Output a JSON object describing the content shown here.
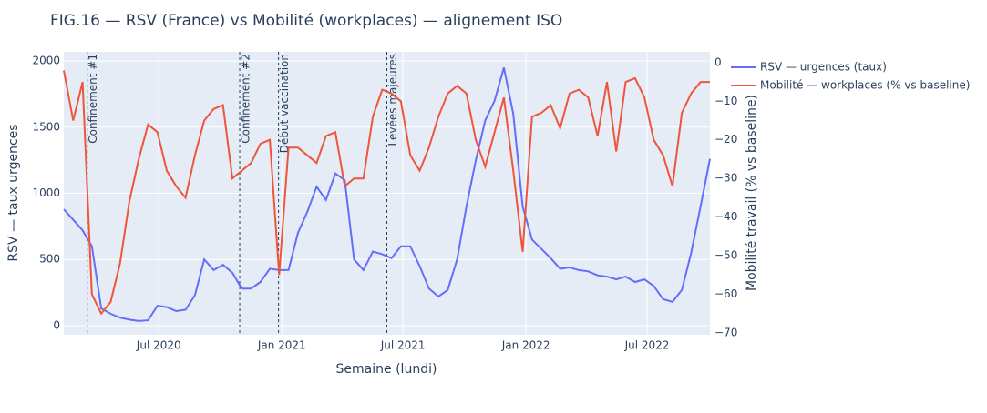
{
  "chart_data": {
    "type": "line",
    "title": "FIG.16 — RSV (France) vs Mobilité (workplaces) — alignement ISO",
    "x_label": "Semaine (lundi)",
    "y_label": "RSV — taux urgences",
    "y2_label": "Mobilité travail (% vs baseline)",
    "x": [
      "2020-02-10",
      "2020-02-24",
      "2020-03-09",
      "2020-03-23",
      "2020-04-06",
      "2020-04-20",
      "2020-05-04",
      "2020-05-18",
      "2020-06-01",
      "2020-06-15",
      "2020-06-29",
      "2020-07-13",
      "2020-07-27",
      "2020-08-10",
      "2020-08-24",
      "2020-09-07",
      "2020-09-21",
      "2020-10-05",
      "2020-10-19",
      "2020-11-02",
      "2020-11-16",
      "2020-11-30",
      "2020-12-14",
      "2020-12-28",
      "2021-01-11",
      "2021-01-25",
      "2021-02-08",
      "2021-02-22",
      "2021-03-08",
      "2021-03-22",
      "2021-04-05",
      "2021-04-19",
      "2021-05-03",
      "2021-05-17",
      "2021-05-31",
      "2021-06-14",
      "2021-06-28",
      "2021-07-12",
      "2021-07-26",
      "2021-08-09",
      "2021-08-23",
      "2021-09-06",
      "2021-09-20",
      "2021-10-04",
      "2021-10-18",
      "2021-11-01",
      "2021-11-15",
      "2021-11-29",
      "2021-12-13",
      "2021-12-27",
      "2022-01-10",
      "2022-01-24",
      "2022-02-07",
      "2022-02-21",
      "2022-03-07",
      "2022-03-21",
      "2022-04-04",
      "2022-04-18",
      "2022-05-02",
      "2022-05-16",
      "2022-05-30",
      "2022-06-13",
      "2022-06-27",
      "2022-07-11",
      "2022-07-25",
      "2022-08-08",
      "2022-08-22",
      "2022-09-05",
      "2022-09-19",
      "2022-10-03"
    ],
    "series": [
      {
        "name": "RSV — urgences (taux)",
        "color": "#636efa",
        "axis": "y",
        "values": [
          880,
          800,
          720,
          600,
          130,
          90,
          60,
          45,
          35,
          40,
          150,
          140,
          110,
          120,
          230,
          500,
          420,
          460,
          400,
          280,
          280,
          330,
          430,
          420,
          420,
          700,
          860,
          1050,
          950,
          1150,
          1100,
          500,
          420,
          560,
          540,
          510,
          600,
          600,
          450,
          280,
          220,
          270,
          500,
          900,
          1250,
          1550,
          1700,
          1950,
          1600,
          900,
          650,
          580,
          510,
          430,
          440,
          420,
          410,
          380,
          370,
          350,
          370,
          330,
          350,
          300,
          200,
          180,
          270,
          550,
          900,
          1260
        ]
      },
      {
        "name": "Mobilité — workplaces (% vs baseline)",
        "color": "#ef553b",
        "axis": "y2",
        "values": [
          -2,
          -15,
          -5,
          -60,
          -65,
          -62,
          -52,
          -36,
          -25,
          -16,
          -18,
          -28,
          -32,
          -35,
          -24,
          -15,
          -12,
          -11,
          -30,
          -28,
          -26,
          -21,
          -20,
          -55,
          -22,
          -22,
          -24,
          -26,
          -19,
          -18,
          -32,
          -30,
          -30,
          -14,
          -7,
          -8,
          -10,
          -24,
          -28,
          -22,
          -14,
          -8,
          -6,
          -8,
          -20,
          -27,
          -18,
          -9,
          -28,
          -49,
          -14,
          -13,
          -11,
          -17,
          -8,
          -7,
          -9,
          -19,
          -5,
          -23,
          -5,
          -4,
          -9,
          -20,
          -24,
          -32,
          -13,
          -8,
          -5,
          -5
        ]
      }
    ],
    "xlim": [
      "2020-02-10",
      "2022-10-03"
    ],
    "xticks": [
      {
        "value": "2020-07-01",
        "label": "Jul 2020"
      },
      {
        "value": "2021-01-01",
        "label": "Jan 2021"
      },
      {
        "value": "2021-07-01",
        "label": "Jul 2021"
      },
      {
        "value": "2022-01-01",
        "label": "Jan 2022"
      },
      {
        "value": "2022-07-01",
        "label": "Jul 2022"
      }
    ],
    "ylim": [
      -69,
      2069
    ],
    "yticks": [
      0,
      500,
      1000,
      1500,
      2000
    ],
    "y2lim": [
      -70.5,
      2.8
    ],
    "y2ticks": [
      0,
      {
        "value": -10,
        "label": "−10"
      },
      {
        "value": -20,
        "label": "−20"
      },
      {
        "value": -30,
        "label": "−30"
      },
      {
        "value": -40,
        "label": "−40"
      },
      {
        "value": -50,
        "label": "−50"
      },
      {
        "value": -60,
        "label": "−60"
      },
      {
        "value": -70,
        "label": "−70"
      }
    ],
    "events": [
      {
        "x": "2020-03-16",
        "label": "Confinement #1"
      },
      {
        "x": "2020-10-30",
        "label": "Confinement #2"
      },
      {
        "x": "2020-12-27",
        "label": "Début vaccination"
      },
      {
        "x": "2021-06-07",
        "label": "Levées majeures"
      }
    ],
    "grid": true
  }
}
